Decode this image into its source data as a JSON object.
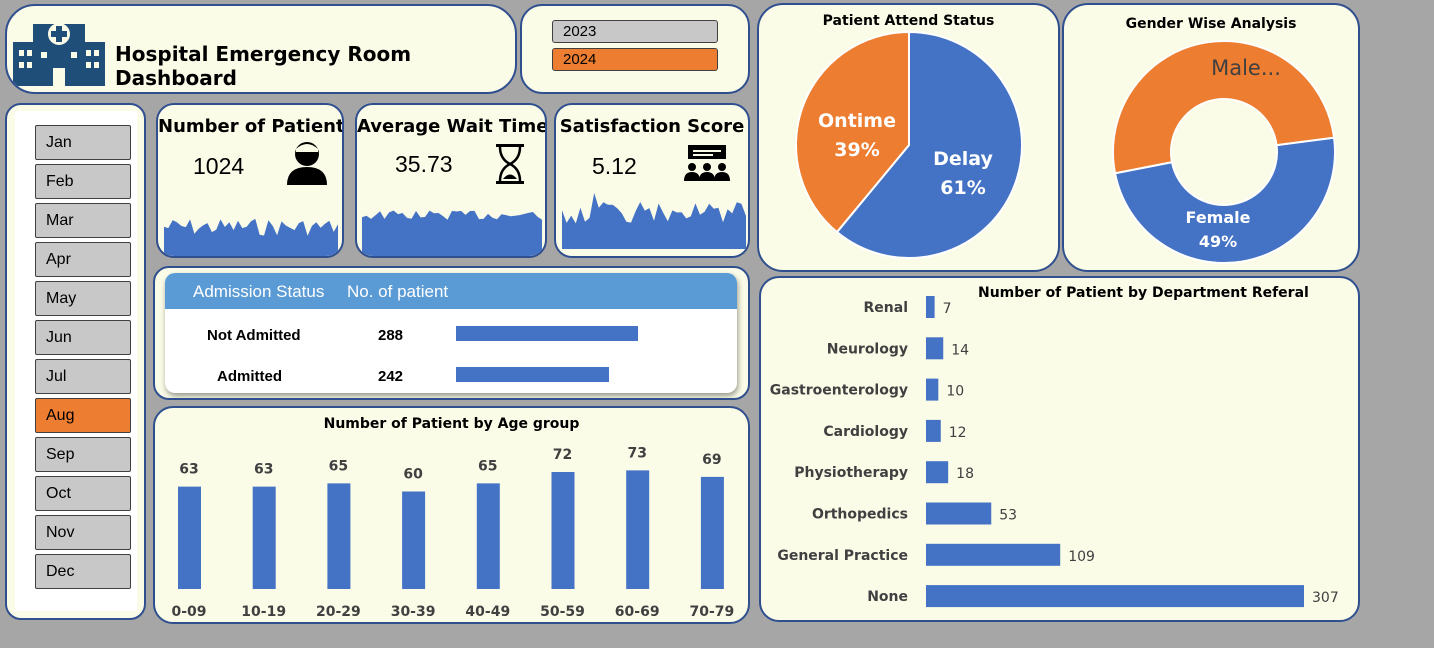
{
  "header": {
    "title": "Hospital Emergency Room Dashboard",
    "logo_icon": "hospital-icon"
  },
  "years": {
    "items": [
      "2023",
      "2024"
    ],
    "selected": "2024"
  },
  "months": {
    "items": [
      "Jan",
      "Feb",
      "Mar",
      "Apr",
      "May",
      "Jun",
      "Jul",
      "Aug",
      "Sep",
      "Oct",
      "Nov",
      "Dec"
    ],
    "selected": "Aug"
  },
  "kpis": {
    "patients": {
      "title": "Number of Patient",
      "value": "1024",
      "icon": "patient-icon"
    },
    "wait": {
      "title": "Average Wait Time",
      "value": "35.73",
      "icon": "hourglass-icon"
    },
    "satisfaction": {
      "title": "Satisfaction Score",
      "value": "5.12",
      "icon": "audience-icon"
    }
  },
  "admission": {
    "headers": [
      "Admission Status",
      "No. of patient"
    ],
    "rows": [
      {
        "label": "Not Admitted",
        "value": 288
      },
      {
        "label": "Admitted",
        "value": 242
      }
    ]
  },
  "colors": {
    "blue": "#4472c4",
    "orange": "#ed7d31",
    "panel": "#fbfce8",
    "border": "#2f4f8f",
    "table_header": "#5b9bd5"
  },
  "chart_data": [
    {
      "id": "age",
      "type": "bar",
      "title": "Number of Patient by Age group",
      "categories": [
        "0-09",
        "10-19",
        "20-29",
        "30-39",
        "40-49",
        "50-59",
        "60-69",
        "70-79"
      ],
      "values": [
        63,
        63,
        65,
        60,
        65,
        72,
        73,
        69
      ],
      "ylim": [
        0,
        80
      ]
    },
    {
      "id": "department",
      "type": "bar",
      "orientation": "horizontal",
      "title": "Number of Patient by Department Referal",
      "categories": [
        "Renal",
        "Neurology",
        "Gastroenterology",
        "Cardiology",
        "Physiotherapy",
        "Orthopedics",
        "General Practice",
        "None"
      ],
      "values": [
        7,
        14,
        10,
        12,
        18,
        53,
        109,
        307
      ]
    },
    {
      "id": "attend",
      "type": "pie",
      "title": "Patient Attend Status",
      "labels": [
        "Delay",
        "Ontime"
      ],
      "values": [
        61,
        39
      ],
      "value_labels": [
        "61%",
        "39%"
      ],
      "colors": [
        "#4472c4",
        "#ed7d31"
      ]
    },
    {
      "id": "gender",
      "type": "pie",
      "donut": true,
      "title": "Gender Wise Analysis",
      "labels": [
        "Female",
        "Male..."
      ],
      "values": [
        49,
        51
      ],
      "value_labels": [
        "49%",
        ""
      ],
      "colors": [
        "#4472c4",
        "#ed7d31"
      ]
    }
  ]
}
